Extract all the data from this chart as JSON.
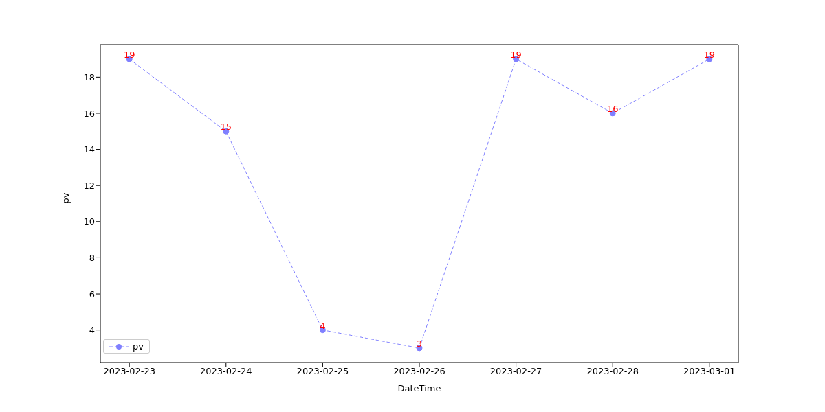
{
  "chart_data": {
    "type": "line",
    "xlabel": "DateTime",
    "ylabel": "pv",
    "x": [
      "2023-02-23",
      "2023-02-24",
      "2023-02-25",
      "2023-02-26",
      "2023-02-27",
      "2023-02-28",
      "2023-03-01"
    ],
    "series": [
      {
        "name": "pv",
        "color": "#8080ff",
        "values": [
          19,
          15,
          4,
          3,
          19,
          16,
          19
        ]
      }
    ],
    "xlim": [
      "2023-02-22T16:48",
      "2023-03-01T07:12"
    ],
    "xticks": [
      "2023-02-23",
      "2023-02-24",
      "2023-02-25",
      "2023-02-26",
      "2023-02-27",
      "2023-02-28",
      "2023-03-01"
    ],
    "ylim": [
      2.2,
      19.8
    ],
    "yticks": [
      4,
      6,
      8,
      10,
      12,
      14,
      16,
      18
    ],
    "data_labels": true,
    "marker": "circle",
    "line_style": "dashed",
    "legend": "bottom left",
    "grid": false
  }
}
